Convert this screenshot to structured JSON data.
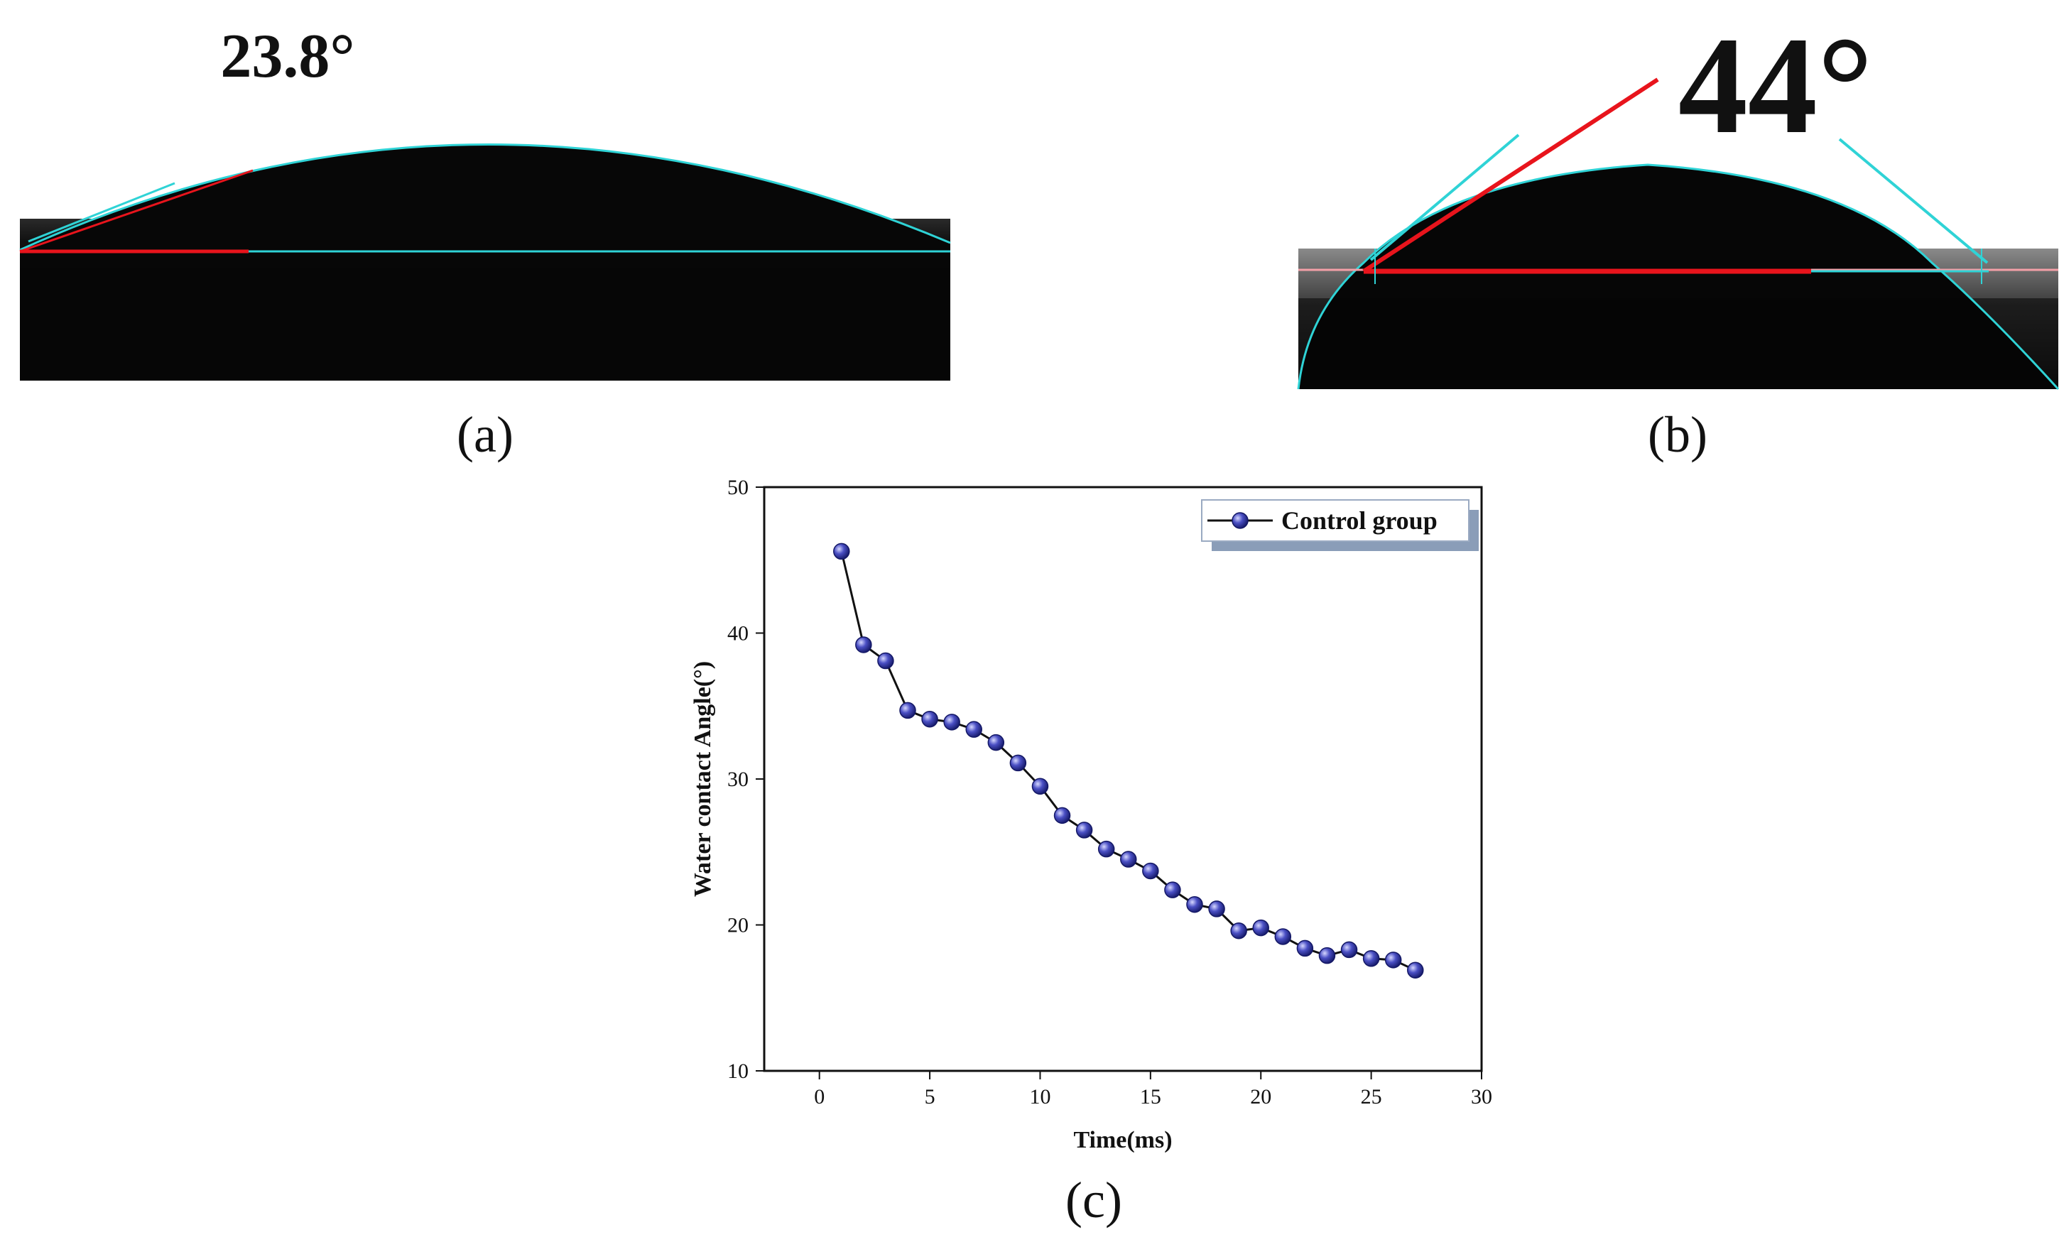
{
  "panels": {
    "a": {
      "label": "(a)",
      "angle_text": "23.8°"
    },
    "b": {
      "label": "(b)",
      "angle_text": "44°"
    },
    "c": {
      "label": "(c)"
    }
  },
  "colors": {
    "marker": "#2b2f9e",
    "line": "#111111",
    "fit_red": "#e8141c",
    "fit_cyan": "#2fd3d6"
  },
  "chart_data": {
    "type": "line",
    "title": "",
    "xlabel": "Time(ms)",
    "ylabel": "Water contact Angle(°)",
    "xlim": [
      -2.5,
      30
    ],
    "ylim": [
      10,
      50
    ],
    "xticks": [
      0,
      5,
      10,
      15,
      20,
      25,
      30
    ],
    "yticks": [
      10,
      20,
      30,
      40,
      50
    ],
    "legend_position": "top-right",
    "series": [
      {
        "name": "Control group",
        "x": [
          1,
          2,
          3,
          4,
          5,
          6,
          7,
          8,
          9,
          10,
          11,
          12,
          13,
          14,
          15,
          16,
          17,
          18,
          19,
          20,
          21,
          22,
          23,
          24,
          25,
          26,
          27
        ],
        "y": [
          45.6,
          39.2,
          38.1,
          34.7,
          34.1,
          33.9,
          33.4,
          32.5,
          31.1,
          29.5,
          27.5,
          26.5,
          25.2,
          24.5,
          23.7,
          22.4,
          21.4,
          21.1,
          19.6,
          19.8,
          19.2,
          18.4,
          17.9,
          18.3,
          17.7,
          17.6,
          16.9
        ]
      }
    ]
  }
}
